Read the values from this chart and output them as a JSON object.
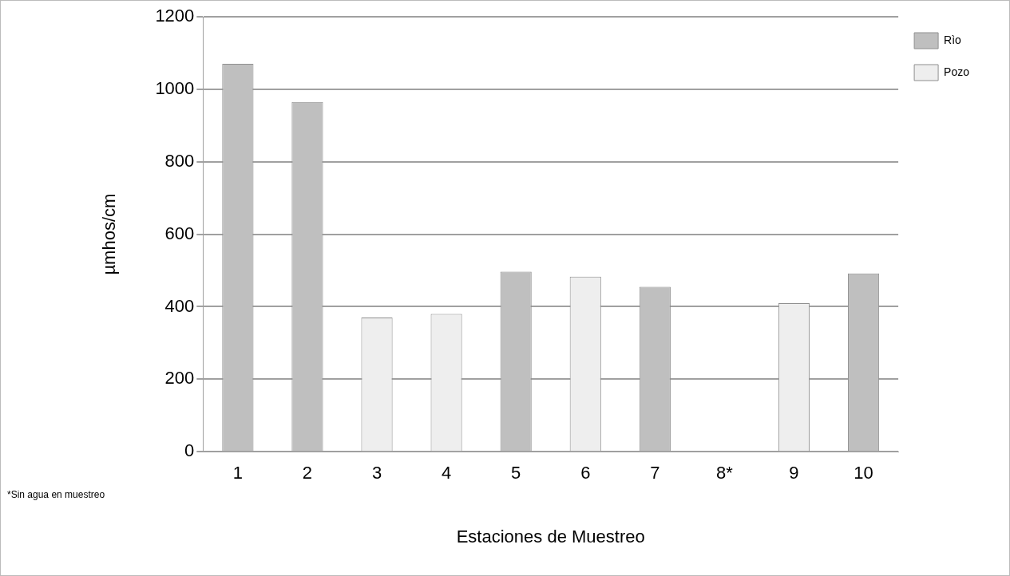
{
  "chart_data": {
    "type": "bar",
    "xlabel": "Estaciones de Muestreo",
    "ylabel": "µmhos/cm",
    "categories": [
      "1",
      "2",
      "3",
      "4",
      "5",
      "6",
      "7",
      "8*",
      "9",
      "10"
    ],
    "series": [
      {
        "name": "Rìo",
        "color": "#bfbfbf",
        "values": [
          1070,
          965,
          null,
          null,
          497,
          null,
          455,
          null,
          null,
          492
        ]
      },
      {
        "name": "Pozo",
        "color": "#eeeeee",
        "values": [
          null,
          null,
          370,
          380,
          null,
          483,
          null,
          null,
          410,
          null
        ]
      }
    ],
    "ylim": [
      0,
      1200
    ],
    "yticks": [
      0,
      200,
      400,
      600,
      800,
      1000,
      1200
    ],
    "grid": "y",
    "legend": "top right",
    "annotations": [
      "*Sin agua en muestreo"
    ]
  }
}
